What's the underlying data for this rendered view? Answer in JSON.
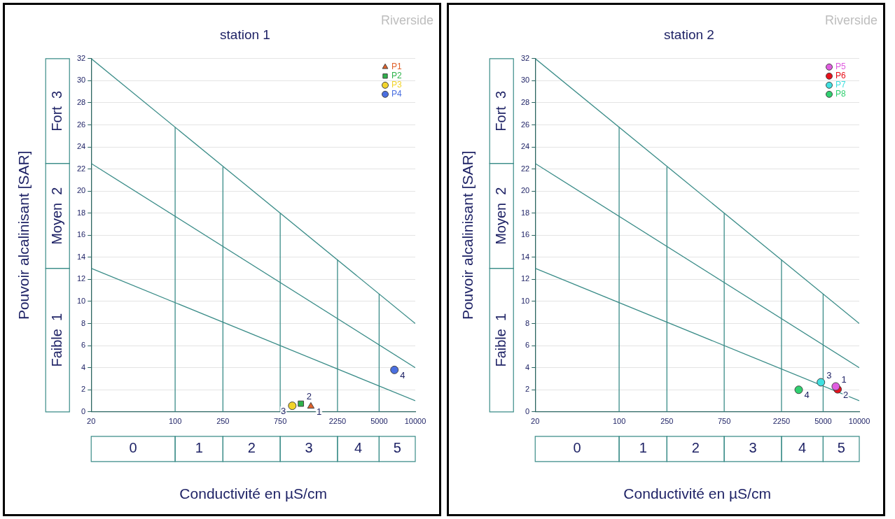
{
  "chart_data": [
    {
      "type": "scatter",
      "title": "station 1",
      "xlabel": "Conductivité en µS/cm",
      "ylabel": "Pouvoir alcalinisant [SAR]",
      "log": "x",
      "xlim": [
        20,
        10000
      ],
      "xticks": [
        20,
        100,
        250,
        750,
        2250,
        5000,
        10000
      ],
      "ylim": [
        0,
        32
      ],
      "yticks": [
        0,
        2,
        4,
        6,
        8,
        10,
        12,
        14,
        16,
        18,
        20,
        22,
        24,
        26,
        28,
        30,
        32
      ],
      "grid": "y",
      "legend": "top right",
      "series": [
        {
          "type": "line",
          "color": "#3a8c88",
          "x": [
            20,
            10000
          ],
          "values": [
            32,
            8
          ]
        },
        {
          "type": "line",
          "color": "#3a8c88",
          "x": [
            20,
            10000
          ],
          "values": [
            22.5,
            4
          ]
        },
        {
          "type": "line",
          "color": "#3a8c88",
          "x": [
            20,
            10000
          ],
          "values": [
            13,
            1
          ]
        },
        {
          "type": "line",
          "color": "#3a8c88",
          "x": [
            100,
            100
          ],
          "values": [
            0,
            25.8
          ]
        },
        {
          "type": "line",
          "color": "#3a8c88",
          "x": [
            250,
            250
          ],
          "values": [
            0,
            22.2
          ]
        },
        {
          "type": "line",
          "color": "#3a8c88",
          "x": [
            750,
            750
          ],
          "values": [
            0,
            18
          ]
        },
        {
          "type": "line",
          "color": "#3a8c88",
          "x": [
            2250,
            2250
          ],
          "values": [
            0,
            13.8
          ]
        },
        {
          "type": "line",
          "color": "#3a8c88",
          "x": [
            5000,
            5000
          ],
          "values": [
            0,
            10.7
          ]
        },
        {
          "name": "P1",
          "color": "#e0612a",
          "marker": "triangle",
          "x": [
            1350
          ],
          "values": [
            0.5
          ]
        },
        {
          "name": "P2",
          "color": "#2db34a",
          "marker": "square",
          "x": [
            1115
          ],
          "values": [
            0.74
          ]
        },
        {
          "name": "P3",
          "color": "#f2d42a",
          "marker": "circle",
          "x": [
            945
          ],
          "values": [
            0.55
          ]
        },
        {
          "name": "P4",
          "color": "#4a6fe0",
          "marker": "circle",
          "x": [
            6700
          ],
          "values": [
            3.8
          ]
        }
      ],
      "annotations": [
        "Riverside",
        "Faible  1",
        "Moyen  2",
        "Fort  3",
        "0",
        "1",
        "2",
        "3",
        "4",
        "5",
        {
          "text": "1",
          "x": 1350,
          "y": 0.5
        },
        {
          "text": "2",
          "x": 1115,
          "y": 0.74
        },
        {
          "text": "3",
          "x": 945,
          "y": 0.55
        },
        {
          "text": "4",
          "x": 6700,
          "y": 3.8
        }
      ]
    },
    {
      "type": "scatter",
      "title": "station 2",
      "xlabel": "Conductivité en µS/cm",
      "ylabel": "Pouvoir alcalinisant [SAR]",
      "log": "x",
      "xlim": [
        20,
        10000
      ],
      "xticks": [
        20,
        100,
        250,
        750,
        2250,
        5000,
        10000
      ],
      "ylim": [
        0,
        32
      ],
      "yticks": [
        0,
        2,
        4,
        6,
        8,
        10,
        12,
        14,
        16,
        18,
        20,
        22,
        24,
        26,
        28,
        30,
        32
      ],
      "grid": "y",
      "legend": "top right",
      "series": [
        {
          "type": "line",
          "color": "#3a8c88",
          "x": [
            20,
            10000
          ],
          "values": [
            32,
            8
          ]
        },
        {
          "type": "line",
          "color": "#3a8c88",
          "x": [
            20,
            10000
          ],
          "values": [
            22.5,
            4
          ]
        },
        {
          "type": "line",
          "color": "#3a8c88",
          "x": [
            20,
            10000
          ],
          "values": [
            13,
            1
          ]
        },
        {
          "type": "line",
          "color": "#3a8c88",
          "x": [
            100,
            100
          ],
          "values": [
            0,
            25.8
          ]
        },
        {
          "type": "line",
          "color": "#3a8c88",
          "x": [
            250,
            250
          ],
          "values": [
            0,
            22.2
          ]
        },
        {
          "type": "line",
          "color": "#3a8c88",
          "x": [
            750,
            750
          ],
          "values": [
            0,
            18
          ]
        },
        {
          "type": "line",
          "color": "#3a8c88",
          "x": [
            2250,
            2250
          ],
          "values": [
            0,
            13.8
          ]
        },
        {
          "type": "line",
          "color": "#3a8c88",
          "x": [
            5000,
            5000
          ],
          "values": [
            0,
            10.7
          ]
        },
        {
          "name": "P5",
          "color": "#e05ce0",
          "marker": "circle",
          "x": [
            6370
          ],
          "values": [
            2.3
          ]
        },
        {
          "name": "P6",
          "color": "#e8101a",
          "marker": "circle",
          "x": [
            6600
          ],
          "values": [
            2.04
          ]
        },
        {
          "name": "P7",
          "color": "#40e0e0",
          "marker": "circle",
          "x": [
            4790
          ],
          "values": [
            2.68
          ]
        },
        {
          "name": "P8",
          "color": "#30d070",
          "marker": "circle",
          "x": [
            3130
          ],
          "values": [
            2.0
          ]
        }
      ],
      "annotations": [
        "Riverside",
        "Faible  1",
        "Moyen  2",
        "Fort  3",
        "0",
        "1",
        "2",
        "3",
        "4",
        "5",
        {
          "text": "1",
          "x": 6370,
          "y": 2.3
        },
        {
          "text": "2",
          "x": 6600,
          "y": 2.04
        },
        {
          "text": "3",
          "x": 4790,
          "y": 2.68
        },
        {
          "text": "4",
          "x": 3130,
          "y": 2.0
        }
      ]
    }
  ]
}
